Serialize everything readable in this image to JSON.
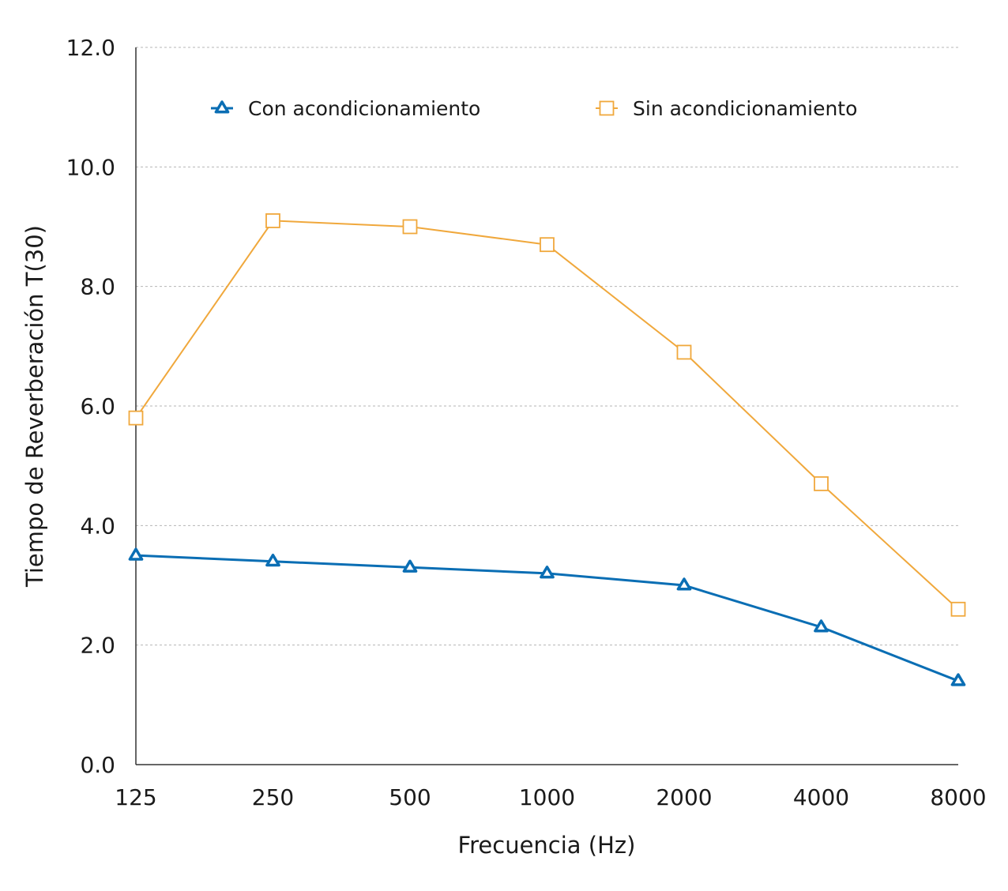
{
  "chart_data": {
    "type": "line",
    "title": "",
    "xlabel": "Frecuencia (Hz)",
    "ylabel": "Tiempo de Reverberación T(30)",
    "categories": [
      "125",
      "250",
      "500",
      "1000",
      "2000",
      "4000",
      "8000"
    ],
    "y_ticks": [
      "0.0",
      "2.0",
      "4.0",
      "6.0",
      "8.0",
      "10.0",
      "12.0"
    ],
    "ylim": [
      0,
      12
    ],
    "grid": true,
    "legend_position": "top",
    "series": [
      {
        "name": "Con acondicionamiento",
        "marker": "triangle",
        "color": "#0a6eb4",
        "values": [
          3.5,
          3.4,
          3.3,
          3.2,
          3.0,
          2.3,
          1.4
        ]
      },
      {
        "name": "Sin acondicionamiento",
        "marker": "square",
        "color": "#f0a83c",
        "values": [
          5.8,
          9.1,
          9.0,
          8.7,
          6.9,
          4.7,
          2.6
        ]
      }
    ]
  }
}
